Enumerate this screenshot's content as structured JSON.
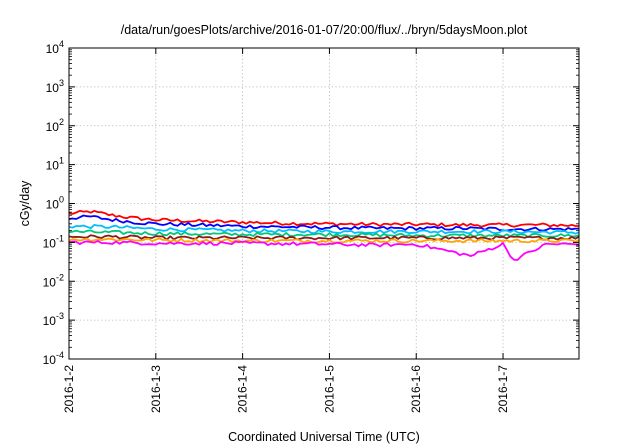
{
  "chart_data": {
    "type": "line",
    "title": "/data/run/goesPlots/archive/2016-01-07/20:00/flux/../bryn/5daysMoon.plot",
    "xlabel": "Coordinated Universal Time (UTC)",
    "ylabel": "cGy/day",
    "yscale": "log",
    "ylim": [
      0.0001,
      10000
    ],
    "xlim": [
      "2016-01-02 00:00",
      "2016-01-07 21:00"
    ],
    "x_ticks": [
      "2016-1-2",
      "2016-1-3",
      "2016-1-4",
      "2016-1-5",
      "2016-1-6",
      "2016-1-7"
    ],
    "y_ticks": [
      {
        "value": 10000,
        "base": "10",
        "exp": "4"
      },
      {
        "value": 1000,
        "base": "10",
        "exp": "3"
      },
      {
        "value": 100,
        "base": "10",
        "exp": "2"
      },
      {
        "value": 10,
        "base": "10",
        "exp": "1"
      },
      {
        "value": 1,
        "base": "10",
        "exp": "0"
      },
      {
        "value": 0.1,
        "base": "10",
        "exp": "-1"
      },
      {
        "value": 0.01,
        "base": "10",
        "exp": "-2"
      },
      {
        "value": 0.001,
        "base": "10",
        "exp": "-3"
      },
      {
        "value": 0.0001,
        "base": "10",
        "exp": "-4"
      }
    ],
    "grid": true,
    "series": [
      {
        "color": "#ff0000",
        "x": [
          "2016-01-02 00:00",
          "2016-01-02 06:00",
          "2016-01-02 12:00",
          "2016-01-02 18:00",
          "2016-01-03 00:00",
          "2016-01-03 12:00",
          "2016-01-04 00:00",
          "2016-01-04 12:00",
          "2016-01-05 00:00",
          "2016-01-05 12:00",
          "2016-01-06 00:00",
          "2016-01-06 12:00",
          "2016-01-07 00:00",
          "2016-01-07 12:00",
          "2016-01-07 21:00"
        ],
        "values": [
          0.55,
          0.62,
          0.5,
          0.42,
          0.38,
          0.35,
          0.33,
          0.31,
          0.3,
          0.29,
          0.29,
          0.28,
          0.28,
          0.28,
          0.27
        ]
      },
      {
        "color": "#0000ff",
        "x": [
          "2016-01-02 00:00",
          "2016-01-02 06:00",
          "2016-01-02 12:00",
          "2016-01-02 18:00",
          "2016-01-03 00:00",
          "2016-01-03 12:00",
          "2016-01-04 00:00",
          "2016-01-04 12:00",
          "2016-01-05 00:00",
          "2016-01-05 12:00",
          "2016-01-06 00:00",
          "2016-01-06 12:00",
          "2016-01-07 00:00",
          "2016-01-07 12:00",
          "2016-01-07 21:00"
        ],
        "values": [
          0.42,
          0.46,
          0.38,
          0.33,
          0.3,
          0.28,
          0.26,
          0.25,
          0.24,
          0.23,
          0.23,
          0.23,
          0.22,
          0.22,
          0.22
        ]
      },
      {
        "color": "#00bfff",
        "x": [
          "2016-01-02 00:00",
          "2016-01-02 12:00",
          "2016-01-03 00:00",
          "2016-01-04 00:00",
          "2016-01-05 00:00",
          "2016-01-06 00:00",
          "2016-01-07 00:00",
          "2016-01-07 21:00"
        ],
        "values": [
          0.26,
          0.25,
          0.22,
          0.2,
          0.19,
          0.19,
          0.19,
          0.18
        ]
      },
      {
        "color": "#00c87a",
        "x": [
          "2016-01-02 00:00",
          "2016-01-02 12:00",
          "2016-01-03 00:00",
          "2016-01-04 00:00",
          "2016-01-05 00:00",
          "2016-01-06 00:00",
          "2016-01-07 00:00",
          "2016-01-07 21:00"
        ],
        "values": [
          0.19,
          0.18,
          0.17,
          0.16,
          0.16,
          0.15,
          0.15,
          0.15
        ]
      },
      {
        "color": "#8b1a1a",
        "x": [
          "2016-01-02 00:00",
          "2016-01-02 12:00",
          "2016-01-03 00:00",
          "2016-01-04 00:00",
          "2016-01-05 00:00",
          "2016-01-06 00:00",
          "2016-01-07 00:00",
          "2016-01-07 21:00"
        ],
        "values": [
          0.14,
          0.14,
          0.13,
          0.13,
          0.13,
          0.13,
          0.13,
          0.13
        ]
      },
      {
        "color": "#ffa500",
        "x": [
          "2016-01-02 00:00",
          "2016-01-02 12:00",
          "2016-01-03 00:00",
          "2016-01-04 00:00",
          "2016-01-05 00:00",
          "2016-01-06 00:00",
          "2016-01-07 00:00",
          "2016-01-07 21:00"
        ],
        "values": [
          0.12,
          0.12,
          0.115,
          0.11,
          0.11,
          0.11,
          0.11,
          0.11
        ]
      },
      {
        "color": "#ff00ff",
        "x": [
          "2016-01-02 00:00",
          "2016-01-02 12:00",
          "2016-01-03 00:00",
          "2016-01-04 00:00",
          "2016-01-05 00:00",
          "2016-01-05 12:00",
          "2016-01-06 00:00",
          "2016-01-06 15:00",
          "2016-01-07 00:00",
          "2016-01-07 03:00",
          "2016-01-07 12:00",
          "2016-01-07 21:00"
        ],
        "values": [
          0.1,
          0.1,
          0.095,
          0.095,
          0.09,
          0.085,
          0.09,
          0.045,
          0.09,
          0.035,
          0.09,
          0.09
        ]
      }
    ]
  }
}
